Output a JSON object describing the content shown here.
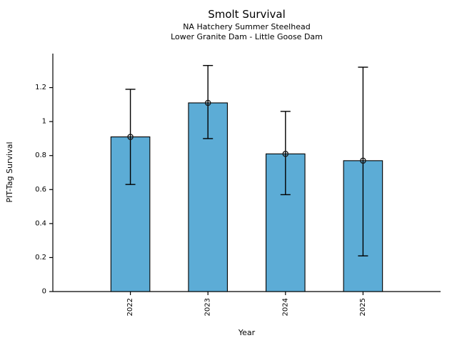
{
  "chart_data": {
    "type": "bar",
    "title": "Smolt Survival",
    "subtitle": [
      "NA Hatchery Summer Steelhead",
      "Lower Granite Dam - Little Goose Dam"
    ],
    "xlabel": "Year",
    "ylabel": "PIT-Tag Survival",
    "categories": [
      "2022",
      "2023",
      "2024",
      "2025"
    ],
    "values": [
      0.91,
      1.11,
      0.81,
      0.77
    ],
    "error_low": [
      0.63,
      0.9,
      0.57,
      0.21
    ],
    "error_high": [
      1.19,
      1.33,
      1.06,
      1.32
    ],
    "ylim": [
      0,
      1.4
    ],
    "yticks": [
      0,
      0.2,
      0.4,
      0.6,
      0.8,
      1.0,
      1.2
    ],
    "ytick_labels": [
      "0",
      "0.2",
      "0.4",
      "0.6",
      "0.8",
      "1",
      "1.2"
    ],
    "bar_color": "#5CACD6",
    "bar_edge_color": "#000000",
    "error_bar_color": "#000000",
    "marker": "open-circle",
    "marker_color": "#1a1a1a",
    "axis_color": "#000000",
    "grid": false,
    "legend": "none"
  }
}
